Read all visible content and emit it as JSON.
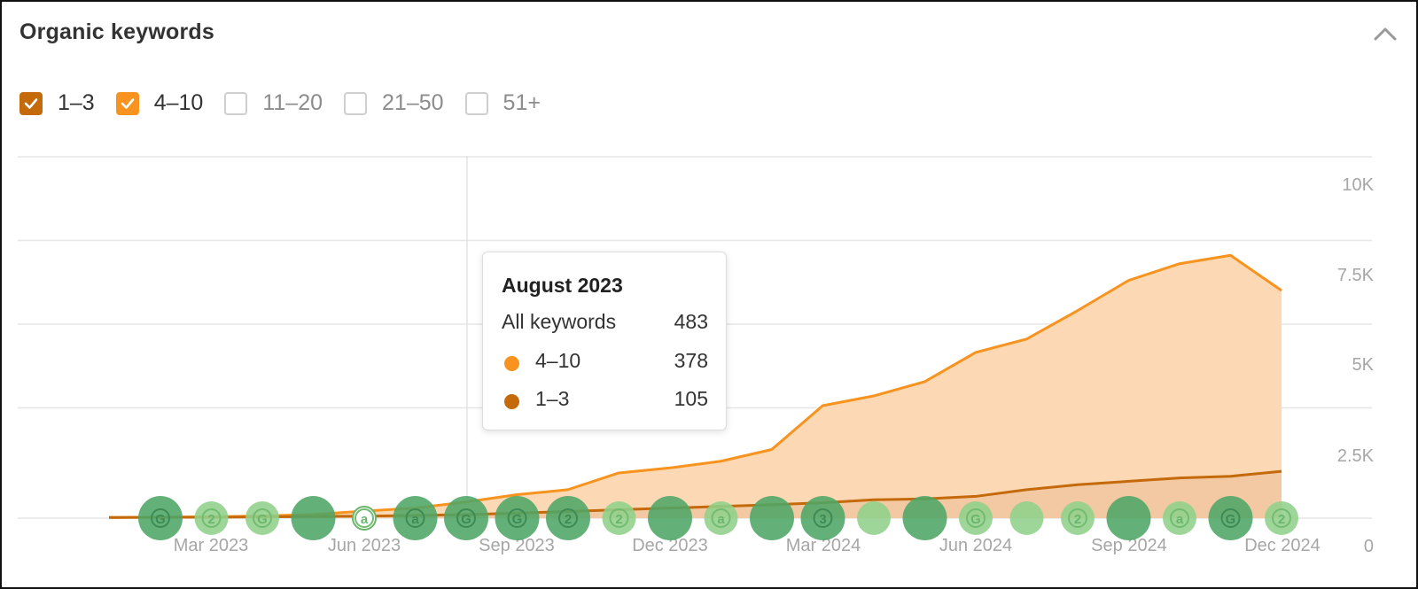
{
  "panel": {
    "title": "Organic keywords"
  },
  "filters": [
    {
      "label": "1–3",
      "checked": true,
      "color": "#c46a0a"
    },
    {
      "label": "4–10",
      "checked": true,
      "color": "#f7931e"
    },
    {
      "label": "11–20",
      "checked": false,
      "color": "#cfcfcf"
    },
    {
      "label": "21–50",
      "checked": false,
      "color": "#cfcfcf"
    },
    {
      "label": "51+",
      "checked": false,
      "color": "#cfcfcf"
    }
  ],
  "tooltip": {
    "title": "August 2023",
    "rows": [
      {
        "label": "All keywords",
        "value": "483"
      },
      {
        "label": "4–10",
        "value": "378",
        "color": "#f7931e"
      },
      {
        "label": "1–3",
        "value": "105",
        "color": "#c46a0a"
      }
    ]
  },
  "chart_data": {
    "type": "area",
    "title": "Organic keywords",
    "y_ticks": [
      "0",
      "2.5K",
      "5K",
      "7.5K",
      "10K"
    ],
    "ylim": [
      0,
      10000
    ],
    "x_ticks": [
      "Mar 2023",
      "Jun 2023",
      "Sep 2023",
      "Dec 2023",
      "Mar 2024",
      "Jun 2024",
      "Sep 2024",
      "Dec 2024"
    ],
    "x": [
      "Jan 2023",
      "Feb 2023",
      "Mar 2023",
      "Apr 2023",
      "May 2023",
      "Jun 2023",
      "Jul 2023",
      "Aug 2023",
      "Sep 2023",
      "Oct 2023",
      "Nov 2023",
      "Dec 2023",
      "Jan 2024",
      "Feb 2024",
      "Mar 2024",
      "Apr 2024",
      "May 2024",
      "Jun 2024",
      "Jul 2024",
      "Aug 2024",
      "Sep 2024",
      "Oct 2024",
      "Nov 2024",
      "Dec 2024"
    ],
    "series": [
      {
        "name": "1–3",
        "color": "#c46a0a",
        "values": [
          20,
          25,
          30,
          35,
          50,
          60,
          80,
          105,
          150,
          200,
          250,
          300,
          350,
          400,
          460,
          550,
          575,
          650,
          850,
          1000,
          1100,
          1200,
          1250,
          1400
        ]
      },
      {
        "name": "4–10",
        "color": "#f7931e",
        "values": [
          0,
          0,
          10,
          30,
          60,
          150,
          220,
          378,
          550,
          650,
          1100,
          1200,
          1350,
          1650,
          2900,
          3100,
          3500,
          4300,
          4500,
          5200,
          6000,
          6400,
          6600,
          5400
        ]
      }
    ],
    "stacked": true,
    "highlight": "Aug 2023",
    "annotations": [
      {
        "x": "Jan 2023",
        "label": "G",
        "size": "large",
        "shade": "dark"
      },
      {
        "x": "Feb 2023",
        "label": "2",
        "size": "small",
        "shade": "light"
      },
      {
        "x": "Mar 2023",
        "label": "G",
        "size": "small",
        "shade": "light"
      },
      {
        "x": "Apr 2023",
        "label": "",
        "size": "large",
        "shade": "dark"
      },
      {
        "x": "May 2023",
        "label": "a",
        "size": "tiny",
        "shade": "white"
      },
      {
        "x": "Jun 2023",
        "label": "a",
        "size": "large",
        "shade": "dark"
      },
      {
        "x": "Jul 2023",
        "label": "G",
        "size": "large",
        "shade": "dark"
      },
      {
        "x": "Aug 2023",
        "label": "G",
        "size": "large",
        "shade": "dark"
      },
      {
        "x": "Sep 2023",
        "label": "2",
        "size": "large",
        "shade": "dark"
      },
      {
        "x": "Oct 2023",
        "label": "2",
        "size": "small",
        "shade": "light"
      },
      {
        "x": "Nov 2023",
        "label": "",
        "size": "large",
        "shade": "dark"
      },
      {
        "x": "Dec 2023",
        "label": "a",
        "size": "small",
        "shade": "light"
      },
      {
        "x": "Jan 2024",
        "label": "",
        "size": "large",
        "shade": "dark"
      },
      {
        "x": "Feb 2024",
        "label": "3",
        "size": "large",
        "shade": "dark"
      },
      {
        "x": "Mar 2024",
        "label": "",
        "size": "small",
        "shade": "light"
      },
      {
        "x": "Apr 2024",
        "label": "",
        "size": "large",
        "shade": "dark"
      },
      {
        "x": "May 2024",
        "label": "G",
        "size": "small",
        "shade": "light"
      },
      {
        "x": "Jun 2024",
        "label": "",
        "size": "small",
        "shade": "light"
      },
      {
        "x": "Jul 2024",
        "label": "2",
        "size": "small",
        "shade": "light"
      },
      {
        "x": "Aug 2024",
        "label": "",
        "size": "large",
        "shade": "dark"
      },
      {
        "x": "Sep 2024",
        "label": "a",
        "size": "small",
        "shade": "light"
      },
      {
        "x": "Oct 2024",
        "label": "G",
        "size": "large",
        "shade": "dark"
      },
      {
        "x": "Nov 2024",
        "label": "2",
        "size": "small",
        "shade": "light"
      }
    ],
    "grid": true
  }
}
